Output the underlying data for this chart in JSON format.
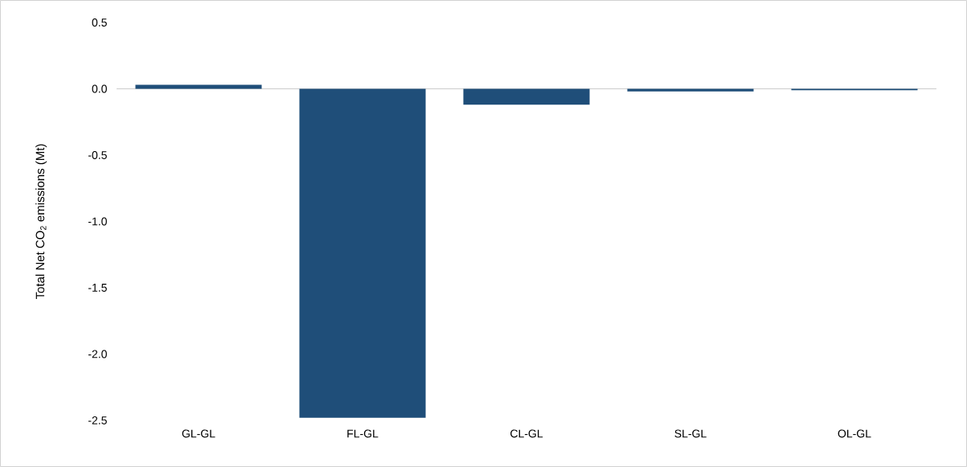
{
  "chart_data": {
    "type": "bar",
    "ylabel": "Total Net CO$_{2}$ emissions (Mt)",
    "categories": [
      "GL-GL",
      "FL-GL",
      "CL-GL",
      "SL-GL",
      "OL-GL"
    ],
    "values": [
      0.03,
      -2.48,
      -0.12,
      -0.02,
      -0.01
    ],
    "color": "#1f4e79",
    "ylim": [
      -2.5,
      0.5
    ],
    "yticks": [
      {
        "value": 0.5,
        "label": "0.5"
      },
      {
        "value": 0,
        "label": "0.0"
      },
      {
        "value": -0.5,
        "label": "-0.5"
      },
      {
        "value": -1,
        "label": "-1.0"
      },
      {
        "value": -1.5,
        "label": "-1.5"
      },
      {
        "value": -2,
        "label": "-2.0"
      },
      {
        "value": -2.5,
        "label": "-2.5"
      }
    ]
  }
}
